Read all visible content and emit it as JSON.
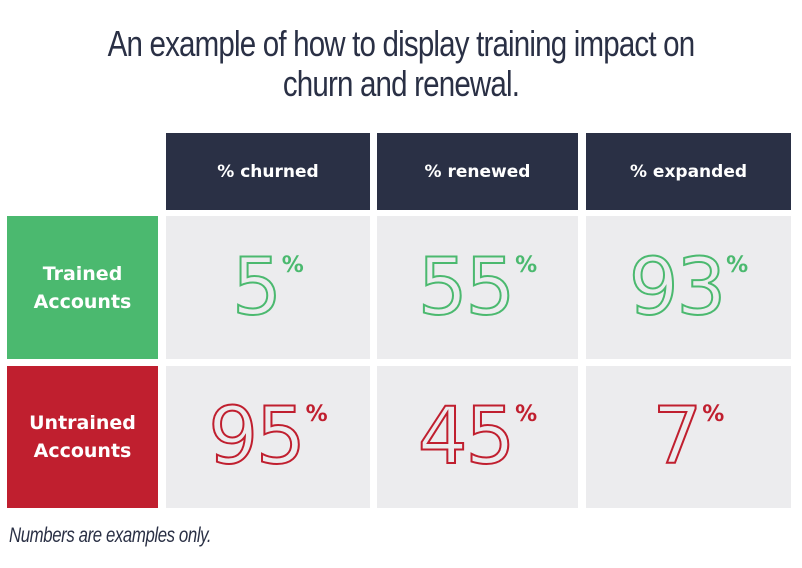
{
  "title": {
    "line1": "An example of how to display training impact on",
    "line2": "churn and renewal."
  },
  "columns": [
    {
      "label": "% churned"
    },
    {
      "label": "% renewed"
    },
    {
      "label": "% expanded"
    }
  ],
  "rows": [
    {
      "label_line1": "Trained",
      "label_line2": "Accounts",
      "color": "#4bb96f",
      "values": [
        "5",
        "55",
        "93"
      ]
    },
    {
      "label_line1": "Untrained",
      "label_line2": "Accounts",
      "color": "#c01f2f",
      "values": [
        "95",
        "45",
        "7"
      ]
    }
  ],
  "percent_symbol": "%",
  "footnote": "Numbers are examples only.",
  "colors": {
    "header_bg": "#2a3045",
    "cell_bg": "#ececee",
    "trained": "#4bb96f",
    "untrained": "#c01f2f",
    "title_text": "#2a3045"
  },
  "chart_data": {
    "type": "table",
    "title": "An example of how to display training impact on churn and renewal.",
    "columns": [
      "% churned",
      "% renewed",
      "% expanded"
    ],
    "rows": [
      "Trained Accounts",
      "Untrained Accounts"
    ],
    "series": [
      {
        "name": "Trained Accounts",
        "values": [
          5,
          55,
          93
        ]
      },
      {
        "name": "Untrained Accounts",
        "values": [
          95,
          45,
          7
        ]
      }
    ],
    "unit": "%",
    "annotation": "Numbers are examples only."
  }
}
